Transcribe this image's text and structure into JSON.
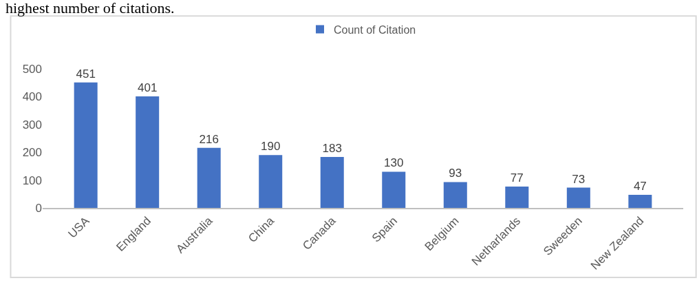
{
  "chart_data": {
    "type": "bar",
    "annotations": [
      "highest number of citations."
    ],
    "categories": [
      "USA",
      "England",
      "Australia",
      "China",
      "Canada",
      "Spain",
      "Belgium",
      "Netharlands",
      "Sweeden",
      "New Zealand"
    ],
    "series": [
      {
        "name": "Count of Citation",
        "color": "#4472c4",
        "values": [
          451,
          401,
          216,
          190,
          183,
          130,
          93,
          77,
          73,
          47
        ]
      }
    ],
    "ylim": [
      0,
      500
    ],
    "yticks": [
      0,
      100,
      200,
      300,
      400,
      500
    ],
    "grid": false,
    "legend": "top",
    "data_labels": true
  }
}
